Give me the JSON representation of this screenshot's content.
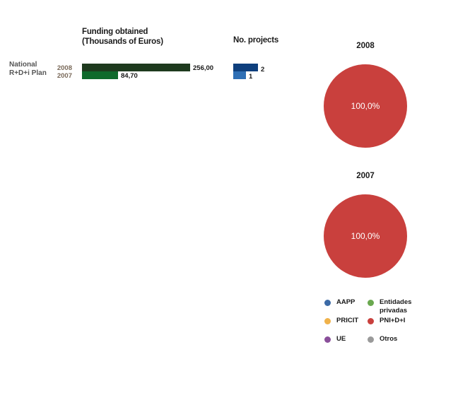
{
  "headers": {
    "funding_line1": "Funding obtained",
    "funding_line2": "(Thousands of Euros)",
    "projects": "No. projects"
  },
  "row_label": {
    "line1": "National",
    "line2": "R+D+i Plan"
  },
  "chart_data": [
    {
      "type": "bar",
      "orientation": "horizontal",
      "title": "Funding obtained (Thousands of Euros)",
      "categories": [
        "2008",
        "2007"
      ],
      "values": [
        256.0,
        84.7
      ],
      "value_labels": [
        "256,00",
        "84,70"
      ],
      "colors": [
        "#1e3a1e",
        "#0f6a2c"
      ],
      "xlim": [
        0,
        256
      ]
    },
    {
      "type": "bar",
      "orientation": "horizontal",
      "title": "No. projects",
      "categories": [
        "2008",
        "2007"
      ],
      "values": [
        2,
        1
      ],
      "value_labels": [
        "2",
        "1"
      ],
      "colors": [
        "#0e3f7d",
        "#2e6fb5"
      ],
      "xlim": [
        0,
        2
      ]
    },
    {
      "type": "pie",
      "title": "2008",
      "slices": [
        {
          "label": "PNI+D+I",
          "value": 100.0,
          "display": "100,0%",
          "color": "#c9403d"
        }
      ]
    },
    {
      "type": "pie",
      "title": "2007",
      "slices": [
        {
          "label": "PNI+D+I",
          "value": 100.0,
          "display": "100,0%",
          "color": "#c9403d"
        }
      ]
    }
  ],
  "legend": [
    {
      "label": "AAPP",
      "color": "#3c6aa6"
    },
    {
      "label": "Entidades privadas",
      "color": "#6aa84f"
    },
    {
      "label": "PRICIT",
      "color": "#f0b24a"
    },
    {
      "label": "PNI+D+I",
      "color": "#c9403d"
    },
    {
      "label": "UE",
      "color": "#8a4f9a"
    },
    {
      "label": "Otros",
      "color": "#9a9a9a"
    }
  ]
}
